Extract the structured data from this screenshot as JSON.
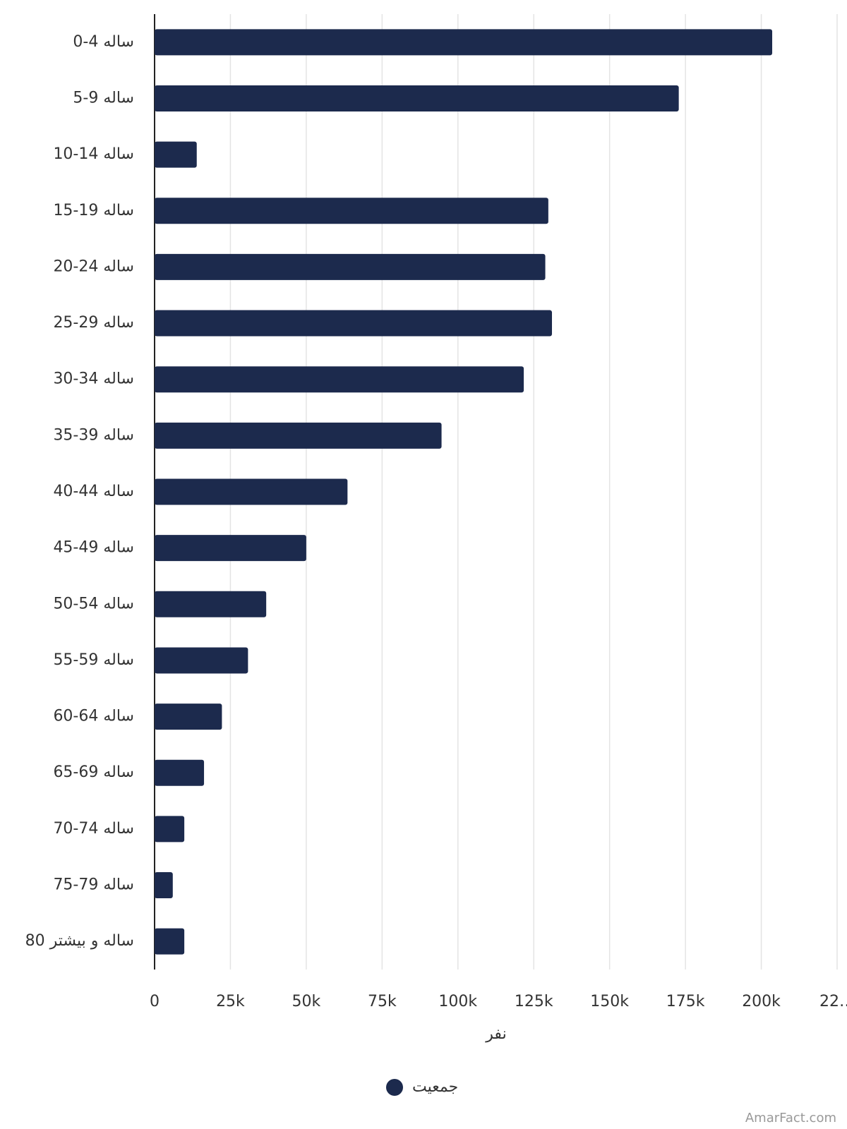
{
  "chart_data": {
    "type": "bar",
    "orientation": "horizontal",
    "categories": [
      "0-4 ساله",
      "5-9 ساله",
      "10-14 ساله",
      "15-19 ساله",
      "20-24 ساله",
      "25-29 ساله",
      "30-34 ساله",
      "35-39 ساله",
      "40-44 ساله",
      "45-49 ساله",
      "50-54 ساله",
      "55-59 ساله",
      "60-64 ساله",
      "65-69 ساله",
      "70-74 ساله",
      "75-79 ساله",
      "80 ساله و بیشتر"
    ],
    "series": [
      {
        "name": "جمعیت",
        "color": "#1c2a4d",
        "values": [
          203600,
          172800,
          13900,
          129800,
          128800,
          131000,
          121700,
          94600,
          63600,
          50000,
          36800,
          30800,
          22200,
          16300,
          9800,
          6000,
          9800
        ]
      }
    ],
    "xlabel": "نفر",
    "xlim": [
      0,
      225000
    ],
    "xticks": [
      0,
      {
        "value": 25000,
        "label": "25k"
      },
      {
        "value": 50000,
        "label": "50k"
      },
      {
        "value": 75000,
        "label": "75k"
      },
      {
        "value": 100000,
        "label": "100k"
      },
      {
        "value": 125000,
        "label": "125k"
      },
      {
        "value": 150000,
        "label": "150k"
      },
      {
        "value": 175000,
        "label": "175k"
      },
      {
        "value": 200000,
        "label": "200k"
      },
      {
        "value": 225000,
        "label": "22…"
      }
    ],
    "grid": true,
    "legend": "bottom",
    "watermark": "AmarFact.com"
  }
}
